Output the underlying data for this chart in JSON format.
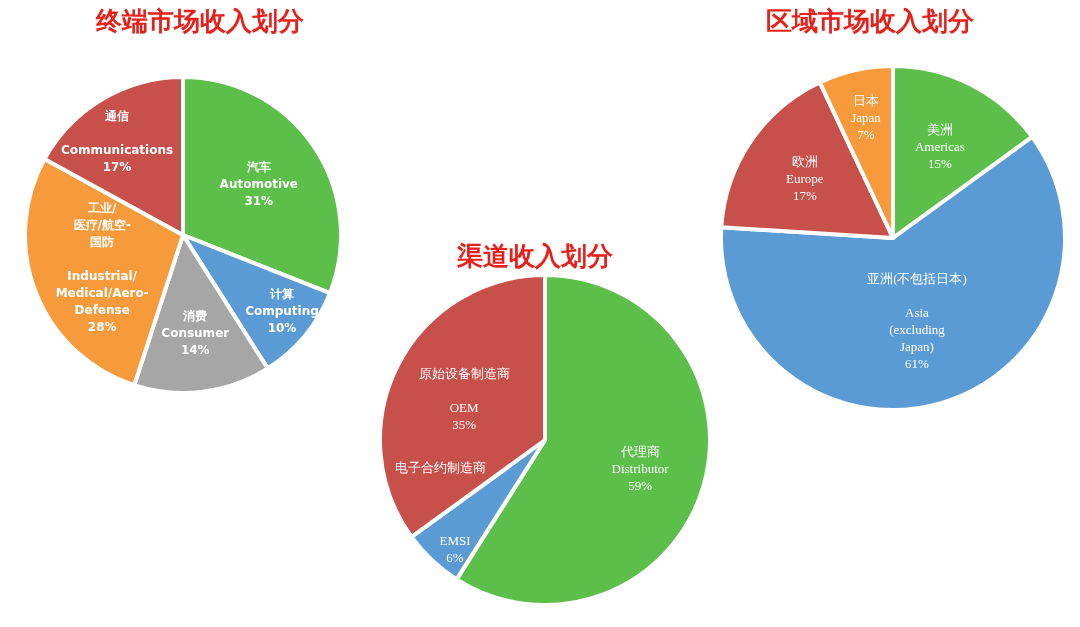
{
  "chart_data": [
    {
      "type": "pie",
      "title": "终端市场收入划分",
      "categories": [
        "汽车\nAutomotive",
        "计算\nComputing",
        "消费\nConsumer",
        "工业/\n医疗/航空-\n国防\n\nIndustrial/\nMedical/Aero-\nDefense",
        "通信\n\nCommunications"
      ],
      "values": [
        31,
        10,
        14,
        28,
        17
      ],
      "colors": [
        "#5bbf4a",
        "#5b9bd5",
        "#a6a6a6",
        "#f79a3c",
        "#c8504b"
      ],
      "value_labels": [
        "31%",
        "10%",
        "14%",
        "28%",
        "17%"
      ]
    },
    {
      "type": "pie",
      "title": "渠道收入划分",
      "categories": [
        "代理商\nDistributor",
        "电子合约制造商\n\nEMSI",
        "原始设备制造商\n\nOEM"
      ],
      "values": [
        59,
        6,
        35
      ],
      "colors": [
        "#5bbf4a",
        "#5b9bd5",
        "#c8504b"
      ],
      "value_labels": [
        "59%",
        "6%",
        "35%"
      ]
    },
    {
      "type": "pie",
      "title": "区域市场收入划分",
      "categories": [
        "美洲\nAmericas",
        "亚洲(不包括日本)\n\nAsia\n(excluding\nJapan)",
        "欧洲\nEurope",
        "日本\nJapan"
      ],
      "values": [
        15,
        61,
        17,
        7
      ],
      "colors": [
        "#5bbf4a",
        "#5b9bd5",
        "#c8504b",
        "#f79a3c"
      ],
      "value_labels": [
        "15%",
        "61%",
        "17%",
        "7%"
      ]
    }
  ]
}
